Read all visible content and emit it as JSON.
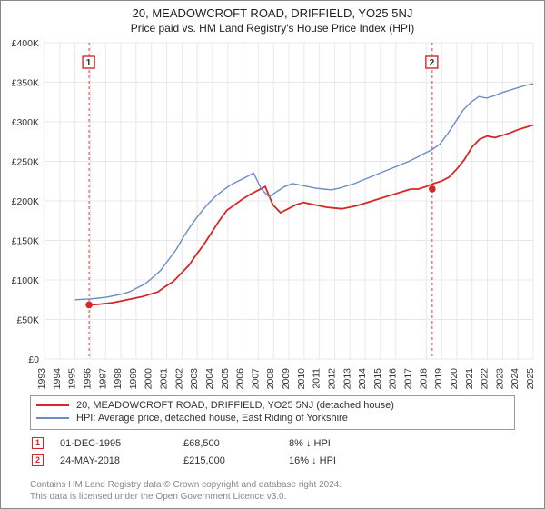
{
  "title": "20, MEADOWCROFT ROAD, DRIFFIELD, YO25 5NJ",
  "subtitle": "Price paid vs. HM Land Registry's House Price Index (HPI)",
  "chart": {
    "type": "line",
    "background_color": "#ffffff",
    "grid_color": "#e8e8e8",
    "ylabel_prefix": "£",
    "ylim": [
      0,
      400000
    ],
    "ytick_step": 50000,
    "y_ticks": [
      "£0",
      "£50K",
      "£100K",
      "£150K",
      "£200K",
      "£250K",
      "£300K",
      "£350K",
      "£400K"
    ],
    "xlim": [
      1993,
      2025
    ],
    "x_ticks": [
      "1993",
      "1994",
      "1995",
      "1996",
      "1997",
      "1998",
      "1999",
      "2000",
      "2001",
      "2002",
      "2003",
      "2004",
      "2005",
      "2006",
      "2007",
      "2008",
      "2009",
      "2010",
      "2011",
      "2012",
      "2013",
      "2014",
      "2015",
      "2016",
      "2017",
      "2018",
      "2019",
      "2020",
      "2021",
      "2022",
      "2023",
      "2024",
      "2025"
    ],
    "series": [
      {
        "name": "property_price",
        "label": "20, MEADOWCROFT ROAD, DRIFFIELD, YO25 5NJ (detached house)",
        "color": "#d62728",
        "line_width": 1.8,
        "x_start_year": 1995.92,
        "values": [
          68500,
          69000,
          70000,
          71000,
          73000,
          75000,
          77000,
          79000,
          82000,
          85000,
          92000,
          98000,
          108000,
          118000,
          132000,
          145000,
          160000,
          175000,
          188000,
          195000,
          202000,
          208000,
          213000,
          218000,
          195000,
          185000,
          190000,
          195000,
          198000,
          196000,
          194000,
          192000,
          191000,
          190000,
          192000,
          194000,
          197000,
          200000,
          203000,
          206000,
          209000,
          212000,
          215000,
          215000,
          218000,
          222000,
          225000,
          230000,
          240000,
          252000,
          268000,
          278000,
          282000,
          280000,
          283000,
          286000,
          290000,
          293000,
          296000
        ]
      },
      {
        "name": "hpi",
        "label": "HPI: Average price, detached house, East Riding of Yorkshire",
        "color": "#6b8cc5",
        "line_width": 1.4,
        "x_start_year": 1995.0,
        "values": [
          75000,
          75500,
          76000,
          77000,
          78000,
          80000,
          82000,
          85000,
          90000,
          95000,
          103000,
          112000,
          125000,
          138000,
          155000,
          170000,
          183000,
          195000,
          205000,
          213000,
          220000,
          225000,
          230000,
          235000,
          215000,
          205000,
          212000,
          218000,
          222000,
          220000,
          218000,
          216000,
          215000,
          214000,
          216000,
          219000,
          222000,
          226000,
          230000,
          234000,
          238000,
          242000,
          246000,
          250000,
          255000,
          260000,
          265000,
          272000,
          285000,
          300000,
          315000,
          325000,
          332000,
          330000,
          333000,
          337000,
          340000,
          343000,
          346000,
          348000
        ]
      }
    ],
    "sale_markers": [
      {
        "index": "1",
        "year": 1995.92,
        "value": 68500,
        "color": "#d62728"
      },
      {
        "index": "2",
        "year": 2018.39,
        "value": 215000,
        "color": "#d62728"
      }
    ]
  },
  "legend": {
    "items": [
      {
        "color": "#d62728",
        "label": "20, MEADOWCROFT ROAD, DRIFFIELD, YO25 5NJ (detached house)"
      },
      {
        "color": "#6b8cc5",
        "label": "HPI: Average price, detached house, East Riding of Yorkshire"
      }
    ]
  },
  "sales": [
    {
      "marker": "1",
      "color": "#d62728",
      "date": "01-DEC-1995",
      "price": "£68,500",
      "pct": "8% ↓ HPI"
    },
    {
      "marker": "2",
      "color": "#d62728",
      "date": "24-MAY-2018",
      "price": "£215,000",
      "pct": "16% ↓ HPI"
    }
  ],
  "attribution": {
    "line1": "Contains HM Land Registry data © Crown copyright and database right 2024.",
    "line2": "This data is licensed under the Open Government Licence v3.0."
  }
}
